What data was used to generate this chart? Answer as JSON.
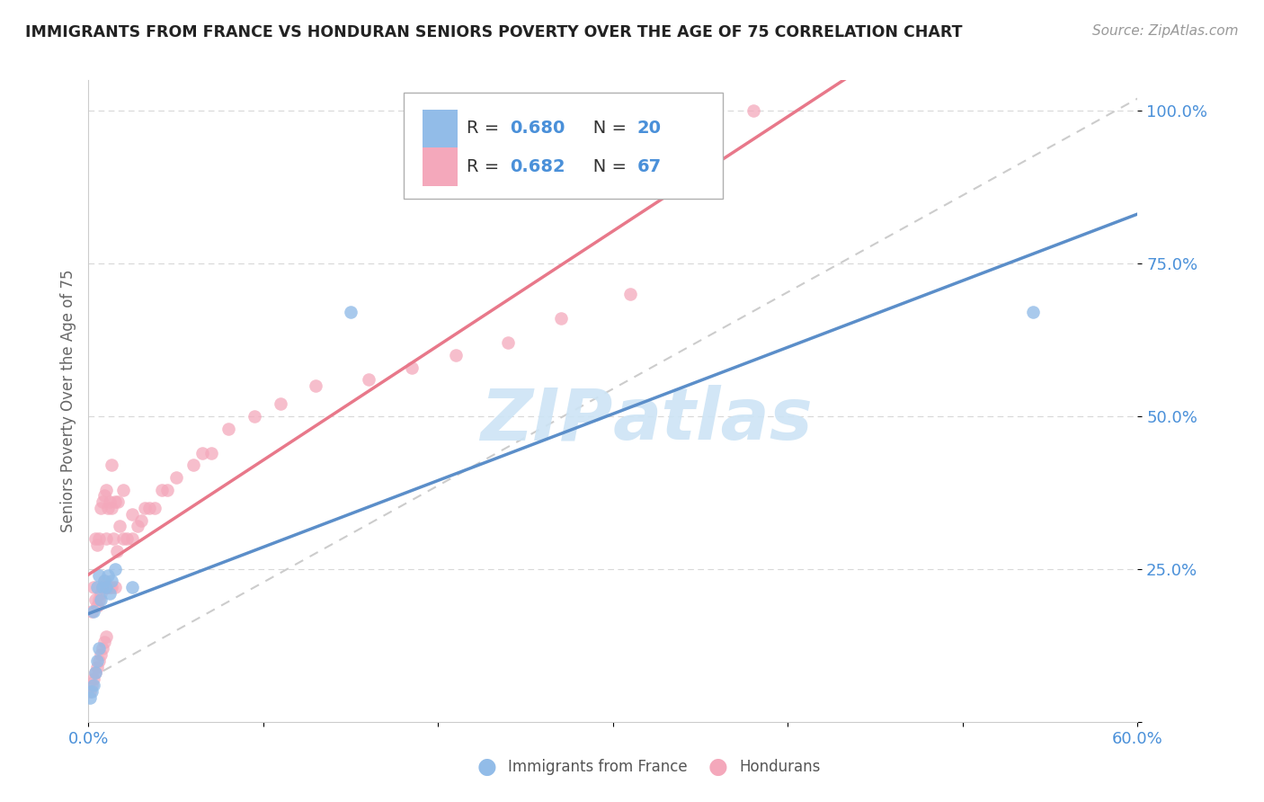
{
  "title": "IMMIGRANTS FROM FRANCE VS HONDURAN SENIORS POVERTY OVER THE AGE OF 75 CORRELATION CHART",
  "source": "Source: ZipAtlas.com",
  "ylabel": "Seniors Poverty Over the Age of 75",
  "xlabel": "",
  "xlim": [
    0.0,
    0.6
  ],
  "ylim": [
    0.0,
    1.05
  ],
  "xtick_vals": [
    0.0,
    0.1,
    0.2,
    0.3,
    0.4,
    0.5,
    0.6
  ],
  "xtick_labels": [
    "0.0%",
    "",
    "",
    "",
    "",
    "",
    "60.0%"
  ],
  "ytick_vals": [
    0.0,
    0.25,
    0.5,
    0.75,
    1.0
  ],
  "ytick_labels": [
    "",
    "25.0%",
    "50.0%",
    "75.0%",
    "100.0%"
  ],
  "blue_color": "#92bce8",
  "pink_color": "#f4a8bb",
  "blue_line_color": "#5b8ec9",
  "pink_line_color": "#e8788a",
  "dashed_line_color": "#cccccc",
  "watermark_color": "#cde4f5",
  "blue_scatter_x": [
    0.001,
    0.002,
    0.003,
    0.003,
    0.004,
    0.005,
    0.005,
    0.006,
    0.006,
    0.007,
    0.008,
    0.009,
    0.01,
    0.011,
    0.012,
    0.013,
    0.015,
    0.025,
    0.54,
    0.15
  ],
  "blue_scatter_y": [
    0.04,
    0.05,
    0.06,
    0.18,
    0.08,
    0.1,
    0.22,
    0.12,
    0.24,
    0.2,
    0.22,
    0.23,
    0.22,
    0.24,
    0.21,
    0.23,
    0.25,
    0.22,
    0.67,
    0.67
  ],
  "pink_scatter_x": [
    0.001,
    0.002,
    0.002,
    0.003,
    0.003,
    0.004,
    0.004,
    0.004,
    0.005,
    0.005,
    0.005,
    0.006,
    0.006,
    0.006,
    0.007,
    0.007,
    0.007,
    0.008,
    0.008,
    0.008,
    0.009,
    0.009,
    0.009,
    0.01,
    0.01,
    0.01,
    0.01,
    0.011,
    0.011,
    0.012,
    0.012,
    0.013,
    0.013,
    0.013,
    0.014,
    0.015,
    0.015,
    0.016,
    0.017,
    0.018,
    0.02,
    0.02,
    0.022,
    0.025,
    0.025,
    0.028,
    0.03,
    0.032,
    0.035,
    0.038,
    0.042,
    0.045,
    0.05,
    0.06,
    0.065,
    0.07,
    0.08,
    0.095,
    0.11,
    0.13,
    0.16,
    0.185,
    0.21,
    0.24,
    0.27,
    0.31,
    0.38
  ],
  "pink_scatter_y": [
    0.05,
    0.06,
    0.18,
    0.07,
    0.22,
    0.08,
    0.2,
    0.3,
    0.09,
    0.19,
    0.29,
    0.1,
    0.2,
    0.3,
    0.11,
    0.21,
    0.35,
    0.12,
    0.22,
    0.36,
    0.13,
    0.23,
    0.37,
    0.14,
    0.22,
    0.3,
    0.38,
    0.22,
    0.35,
    0.22,
    0.36,
    0.22,
    0.35,
    0.42,
    0.3,
    0.22,
    0.36,
    0.28,
    0.36,
    0.32,
    0.3,
    0.38,
    0.3,
    0.3,
    0.34,
    0.32,
    0.33,
    0.35,
    0.35,
    0.35,
    0.38,
    0.38,
    0.4,
    0.42,
    0.44,
    0.44,
    0.48,
    0.5,
    0.52,
    0.55,
    0.56,
    0.58,
    0.6,
    0.62,
    0.66,
    0.7,
    1.0
  ],
  "blue_line_slope": 1.35,
  "blue_line_intercept": 0.025,
  "pink_line_slope": 1.65,
  "pink_line_intercept": 0.08,
  "dashed_slope": 1.58,
  "dashed_intercept": 0.05
}
